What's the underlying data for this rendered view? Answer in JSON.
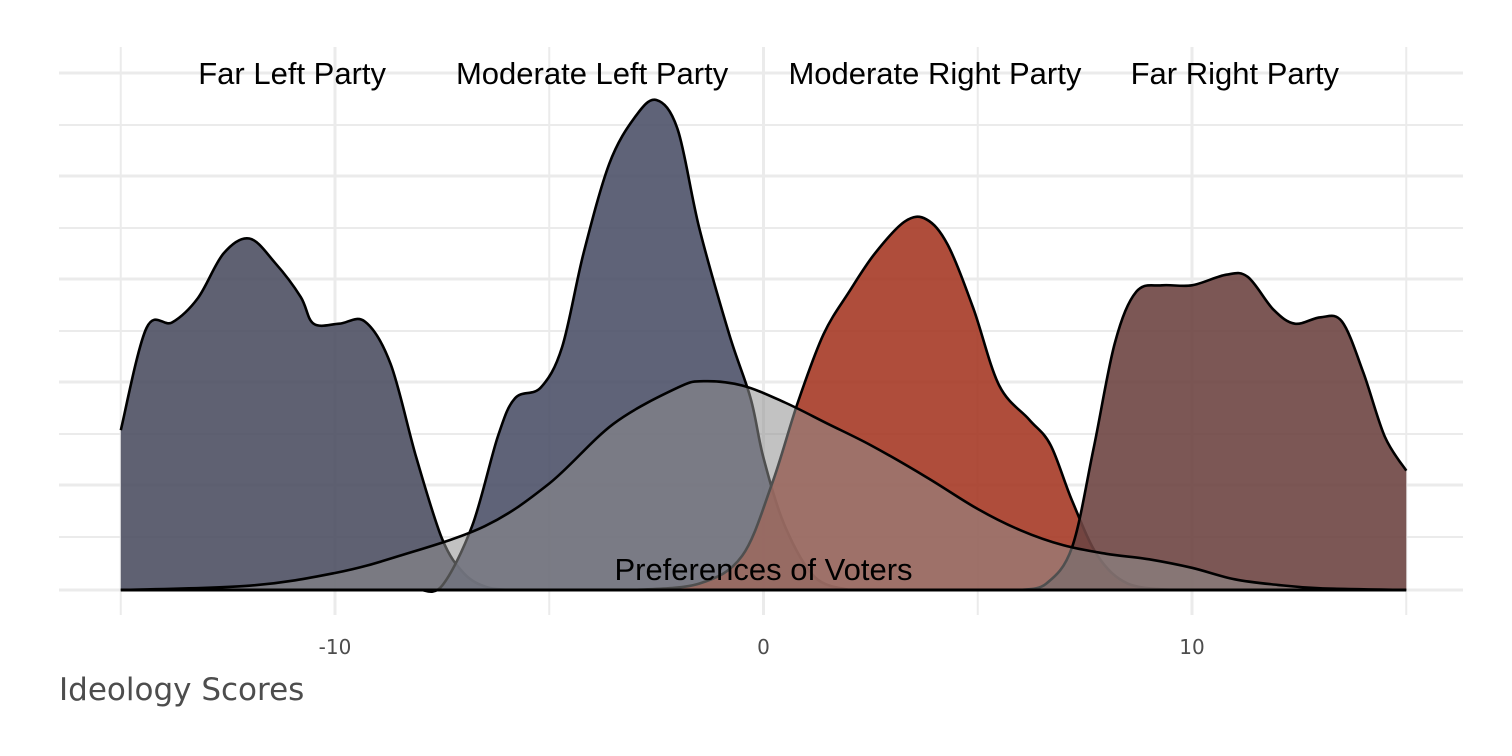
{
  "chart_data": {
    "type": "area",
    "title": "",
    "xlabel": "Ideology Scores",
    "ylabel": "",
    "xlim": [
      -15,
      15
    ],
    "ylim": [
      0,
      0.115
    ],
    "x_ticks": [
      -10,
      0,
      10
    ],
    "x_tick_labels": [
      "-10",
      "0",
      "10"
    ],
    "grid": true,
    "legend": "none",
    "series": [
      {
        "name": "Far Left Party",
        "color": "#4e5063",
        "points": [
          [
            -15,
            0.0375
          ],
          [
            -14.4,
            0.0615
          ],
          [
            -13.8,
            0.0628
          ],
          [
            -13.2,
            0.0685
          ],
          [
            -12.6,
            0.079
          ],
          [
            -12.0,
            0.0825
          ],
          [
            -11.4,
            0.0768
          ],
          [
            -10.8,
            0.0688
          ],
          [
            -10.5,
            0.0625
          ],
          [
            -9.9,
            0.0625
          ],
          [
            -9.3,
            0.063
          ],
          [
            -8.7,
            0.053
          ],
          [
            -8.1,
            0.031
          ],
          [
            -7.5,
            0.012
          ],
          [
            -7.0,
            0.004
          ],
          [
            -6.5,
            0.0008
          ],
          [
            -6.0,
            0
          ]
        ]
      },
      {
        "name": "Moderate Left Party",
        "color": "#4e5269",
        "points": [
          [
            -8,
            0
          ],
          [
            -7.5,
            0.001
          ],
          [
            -6.8,
            0.015
          ],
          [
            -6.2,
            0.036
          ],
          [
            -5.8,
            0.045
          ],
          [
            -5.2,
            0.0475
          ],
          [
            -4.7,
            0.057
          ],
          [
            -4.2,
            0.079
          ],
          [
            -3.6,
            0.1
          ],
          [
            -3.0,
            0.111
          ],
          [
            -2.5,
            0.115
          ],
          [
            -2.0,
            0.108
          ],
          [
            -1.5,
            0.085
          ],
          [
            -0.8,
            0.06
          ],
          [
            -0.3,
            0.045
          ],
          [
            0,
            0.031
          ],
          [
            0.5,
            0.015
          ],
          [
            1.2,
            0.003
          ],
          [
            2.0,
            0
          ]
        ]
      },
      {
        "name": "Moderate Right Party",
        "color": "#a63a26",
        "points": [
          [
            -3,
            0
          ],
          [
            -1.5,
            0.0015
          ],
          [
            -0.5,
            0.008
          ],
          [
            0.2,
            0.025
          ],
          [
            0.8,
            0.044
          ],
          [
            1.4,
            0.06
          ],
          [
            2.0,
            0.07
          ],
          [
            2.6,
            0.079
          ],
          [
            3.3,
            0.0865
          ],
          [
            3.8,
            0.087
          ],
          [
            4.3,
            0.081
          ],
          [
            4.9,
            0.066
          ],
          [
            5.5,
            0.048
          ],
          [
            6.2,
            0.04
          ],
          [
            6.7,
            0.034
          ],
          [
            7.2,
            0.021
          ],
          [
            7.8,
            0.008
          ],
          [
            8.5,
            0.0015
          ],
          [
            9.5,
            0
          ]
        ]
      },
      {
        "name": "Far Right Party",
        "color": "#6e4543",
        "points": [
          [
            6.0,
            0
          ],
          [
            6.6,
            0.0015
          ],
          [
            7.2,
            0.01
          ],
          [
            7.7,
            0.033
          ],
          [
            8.2,
            0.058
          ],
          [
            8.7,
            0.07
          ],
          [
            9.3,
            0.0715
          ],
          [
            10.0,
            0.0715
          ],
          [
            10.8,
            0.074
          ],
          [
            11.3,
            0.0735
          ],
          [
            11.9,
            0.0658
          ],
          [
            12.4,
            0.0625
          ],
          [
            13.0,
            0.064
          ],
          [
            13.5,
            0.063
          ],
          [
            14.0,
            0.051
          ],
          [
            14.5,
            0.036
          ],
          [
            15,
            0.028
          ]
        ]
      },
      {
        "name": "Preferences of Voters",
        "color": "#8f8f8f",
        "points": [
          [
            -15,
            0
          ],
          [
            -12,
            0.001
          ],
          [
            -10,
            0.004
          ],
          [
            -8.5,
            0.008
          ],
          [
            -6.5,
            0.015
          ],
          [
            -5,
            0.025
          ],
          [
            -3.5,
            0.039
          ],
          [
            -2,
            0.0475
          ],
          [
            -1.4,
            0.049
          ],
          [
            -0.5,
            0.048
          ],
          [
            0.5,
            0.044
          ],
          [
            1.5,
            0.039
          ],
          [
            2.5,
            0.034
          ],
          [
            3.8,
            0.0265
          ],
          [
            5,
            0.019
          ],
          [
            6,
            0.014
          ],
          [
            7,
            0.0105
          ],
          [
            8,
            0.0085
          ],
          [
            9,
            0.0072
          ],
          [
            10,
            0.0052
          ],
          [
            11,
            0.0025
          ],
          [
            12,
            0.0012
          ],
          [
            13,
            0.0004
          ],
          [
            15,
            0
          ]
        ]
      }
    ],
    "annotations": [
      {
        "label": "Far Left Party",
        "x": -11.0
      },
      {
        "label": "Moderate Left Party",
        "x": -4.0
      },
      {
        "label": "Moderate Right Party",
        "x": 4.0
      },
      {
        "label": "Far Right Party",
        "x": 11.0
      },
      {
        "label": "Preferences of Voters",
        "x": 0.0
      }
    ]
  }
}
